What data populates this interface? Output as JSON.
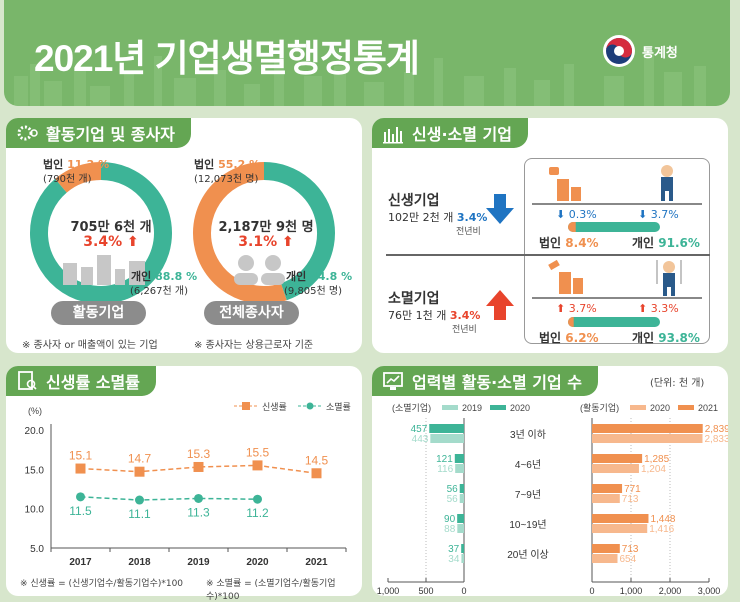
{
  "header": {
    "title": "2021년 기업생멸행정통계",
    "org": "통계청"
  },
  "colors": {
    "green": "#64a653",
    "orange": "#f0904f",
    "orange_light": "#f7b88d",
    "teal": "#3db497",
    "teal_light": "#a4dbcb",
    "red": "#e8442c",
    "blue": "#1f74c2",
    "gray": "#8c8c8c"
  },
  "panel1": {
    "title": "활동기업 및 종사자",
    "icon": "gear-people-icon",
    "donut_companies": {
      "label": "활동기업",
      "total": "705만 6천 개",
      "change": "3.4%",
      "change_dir": "up",
      "corp_label": "법인",
      "corp_pct": "11.2 %",
      "corp_value": "(790천 개)",
      "corp_share": 11.2,
      "indiv_label": "개인",
      "indiv_pct": "88.8 %",
      "indiv_value": "(6,267천 개)",
      "indiv_share": 88.8,
      "note": "※ 종사자 or 매출액이 있는 기업"
    },
    "donut_workers": {
      "label": "전체종사자",
      "total": "2,187만 9천 명",
      "change": "3.1%",
      "change_dir": "up",
      "corp_label": "법인",
      "corp_pct": "55.2 %",
      "corp_value": "(12,073천 명)",
      "corp_share": 55.2,
      "indiv_label": "개인",
      "indiv_pct": "44.8 %",
      "indiv_value": "(9,805천 명)",
      "indiv_share": 44.8,
      "note": "※ 종사자는 상용근로자 기준"
    }
  },
  "panel2": {
    "title": "신생·소멸 기업",
    "icon": "bar-chart-icon",
    "rows": [
      {
        "name": "신생기업",
        "value": "102만 2천 개",
        "change": "3.4%",
        "dir": "down",
        "sub": "전년비",
        "corp_change": "0.3%",
        "indiv_change": "3.7%",
        "corp_label": "법인",
        "corp_pct": "8.4%",
        "corp_share": 8.4,
        "indiv_label": "개인",
        "indiv_pct": "91.6%",
        "indiv_share": 91.6
      },
      {
        "name": "소멸기업",
        "value": "76만 1천 개",
        "change": "3.4%",
        "dir": "up",
        "sub": "전년비",
        "corp_change": "3.7%",
        "indiv_change": "3.3%",
        "corp_label": "법인",
        "corp_pct": "6.2%",
        "corp_share": 6.2,
        "indiv_label": "개인",
        "indiv_pct": "93.8%",
        "indiv_share": 93.8
      }
    ]
  },
  "panel3": {
    "title": "신생률 소멸률",
    "icon": "document-search-icon",
    "note_birth": "※ 신생률 = (신생기업수/활동기업수)*100",
    "note_death": "※ 소멸률 = (소멸기업수/활동기업수)*100"
  },
  "panel4": {
    "title": "업력별 활동·소멸 기업 수",
    "icon": "monitor-chart-icon",
    "unit": "(단위: 천 개)"
  },
  "chart_data": [
    {
      "type": "pie",
      "title": "활동기업",
      "categories": [
        "법인",
        "개인"
      ],
      "values": [
        11.2,
        88.8
      ],
      "absolute": [
        790,
        6267
      ],
      "unit": "%"
    },
    {
      "type": "pie",
      "title": "전체종사자",
      "categories": [
        "법인",
        "개인"
      ],
      "values": [
        55.2,
        44.8
      ],
      "absolute": [
        12073,
        9805
      ],
      "unit": "%"
    },
    {
      "type": "line",
      "title": "신생률 소멸률",
      "ylabel": "(%)",
      "x": [
        "2017",
        "2018",
        "2019",
        "2020",
        "2021"
      ],
      "series": [
        {
          "name": "신생률",
          "values": [
            15.1,
            14.7,
            15.3,
            15.5,
            14.5
          ]
        },
        {
          "name": "소멸률",
          "values": [
            11.5,
            11.1,
            11.3,
            11.2,
            null
          ]
        }
      ],
      "ylim": [
        5.0,
        20.0
      ],
      "yticks": [
        "5.0",
        "10.0",
        "15.0",
        "20.0"
      ],
      "legend": "top-right",
      "grid": false
    },
    {
      "type": "bar",
      "title": "업력별 활동·소멸 기업 수",
      "unit": "천 개",
      "categories": [
        "3년 이하",
        "4~6년",
        "7~9년",
        "10~19년",
        "20년 이상"
      ],
      "left_group": "(소멸기업)",
      "left_series": [
        {
          "name": "2020",
          "values": [
            457,
            121,
            56,
            90,
            37
          ]
        },
        {
          "name": "2019",
          "values": [
            443,
            116,
            56,
            88,
            34
          ]
        }
      ],
      "left_xlim": [
        0,
        1000
      ],
      "left_ticks": [
        "1,000",
        "500",
        "0"
      ],
      "right_group": "(활동기업)",
      "right_series": [
        {
          "name": "2021",
          "values": [
            2839,
            1285,
            771,
            1448,
            713
          ]
        },
        {
          "name": "2020",
          "values": [
            2833,
            1204,
            713,
            1416,
            654
          ]
        }
      ],
      "right_xlim": [
        0,
        3000
      ],
      "right_ticks": [
        "0",
        "1,000",
        "2,000",
        "3,000"
      ],
      "legend": "top"
    }
  ]
}
